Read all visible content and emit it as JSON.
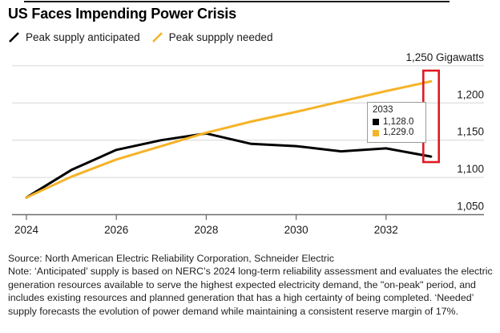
{
  "header": {
    "title": "US Faces Impending Power Crisis"
  },
  "legend": {
    "items": [
      {
        "label": "Peak supply anticipated",
        "color": "#000000"
      },
      {
        "label": "Peak suppply needed",
        "color": "#f5b327"
      }
    ]
  },
  "chart_data": {
    "type": "line",
    "title": "US Faces Impending Power Crisis",
    "ylabel": "Gigawatts",
    "xlabel": "",
    "grid": true,
    "legend_position": "top",
    "x": [
      2024,
      2025,
      2026,
      2027,
      2028,
      2029,
      2030,
      2031,
      2032,
      2033
    ],
    "series": [
      {
        "name": "Peak supply anticipated",
        "color": "#000000",
        "values": [
          1073,
          1110,
          1137,
          1150,
          1159,
          1145,
          1142,
          1135,
          1139,
          1128
        ]
      },
      {
        "name": "Peak suppply needed",
        "color": "#f5b327",
        "values": [
          1073,
          1101,
          1124,
          1142,
          1160,
          1175,
          1188,
          1202,
          1216,
          1229
        ]
      }
    ],
    "ylim": [
      1050,
      1250
    ],
    "xlim": [
      2024,
      2033.3
    ],
    "y_ticks": [
      {
        "value": 1250,
        "label": "1,250 Gigawatts"
      },
      {
        "value": 1200,
        "label": "1,200"
      },
      {
        "value": 1150,
        "label": "1,150"
      },
      {
        "value": 1100,
        "label": "1,100"
      },
      {
        "value": 1050,
        "label": "1,050"
      }
    ],
    "x_ticks": [
      {
        "value": 2024,
        "label": "2024"
      },
      {
        "value": 2026,
        "label": "2026"
      },
      {
        "value": 2028,
        "label": "2028"
      },
      {
        "value": 2030,
        "label": "2030"
      },
      {
        "value": 2032,
        "label": "2032"
      }
    ],
    "tooltip": {
      "title": "2033",
      "rows": [
        {
          "color": "#000000",
          "value": "1,128.0"
        },
        {
          "color": "#f5b327",
          "value": "1,229.0"
        }
      ]
    },
    "highlight_box": {
      "color": "#e01a22"
    }
  },
  "footer": {
    "source": "Source: North American Electric Reliability Corporation, Schneider Electric",
    "note": "Note: ‘Anticipated’ supply is based on NERC’s 2024 long-term reliability assessment and evaluates the electric generation resources available to serve the highest expected electricity demand, the \"on-peak\" period, and includes existing resources and planned generation that has a high certainty of being completed. ‘Needed’ supply forecasts the evolution of power demand while maintaining a consistent reserve margin of 17%."
  }
}
